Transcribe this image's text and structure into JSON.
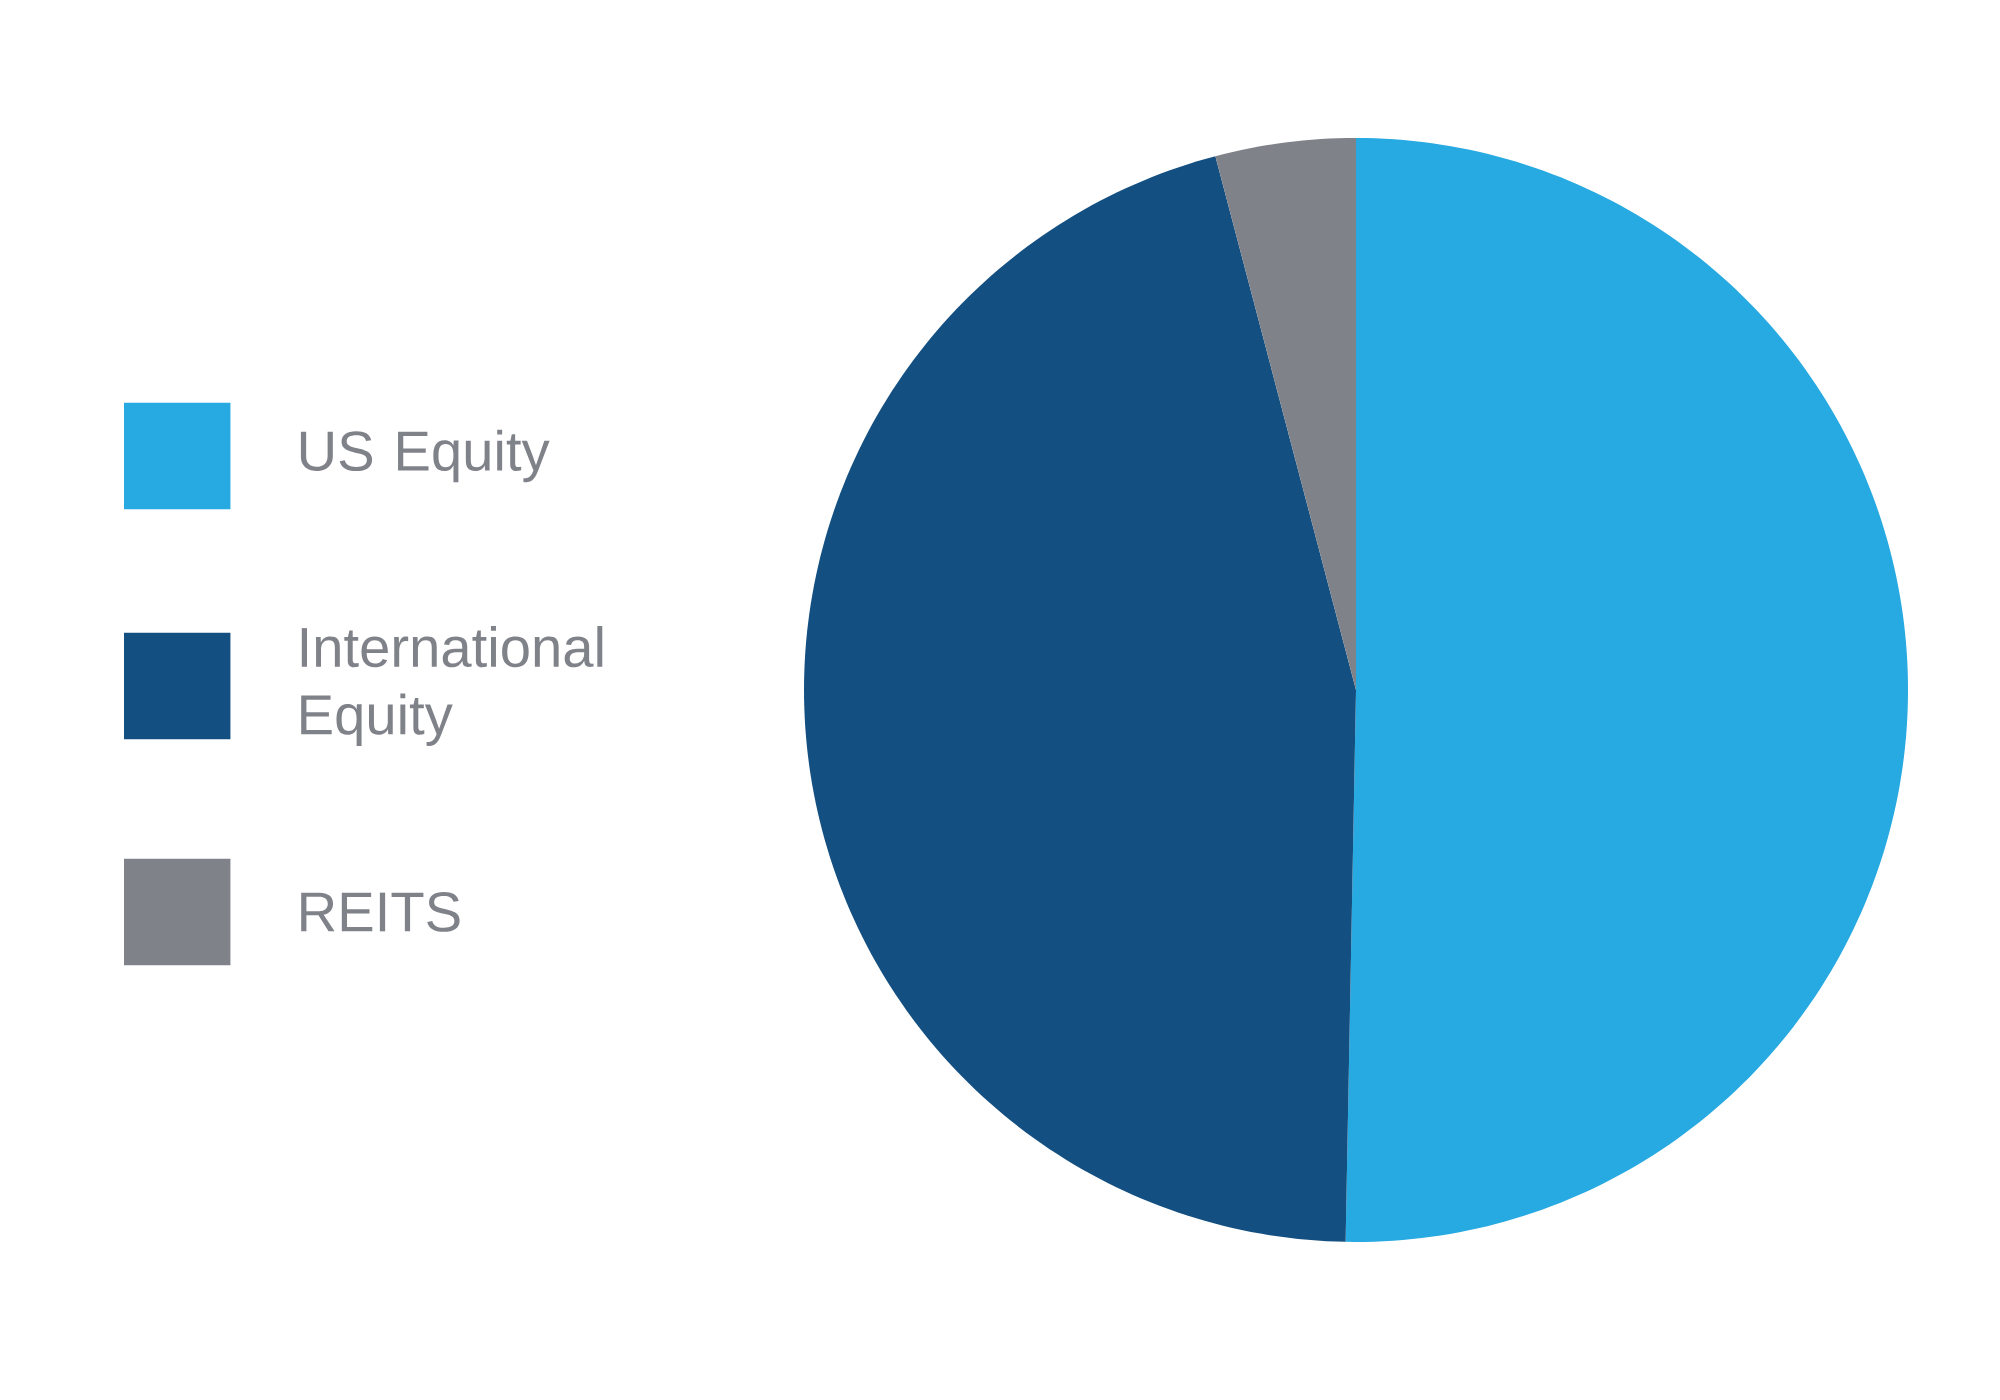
{
  "chart_data": {
    "type": "pie",
    "categories": [
      "US Equity",
      "International Equity",
      "REITS"
    ],
    "values": [
      50.3,
      45.6,
      4.1
    ],
    "colors": [
      "#27a9e1",
      "#134f80",
      "#808289"
    ],
    "legend": "left"
  }
}
